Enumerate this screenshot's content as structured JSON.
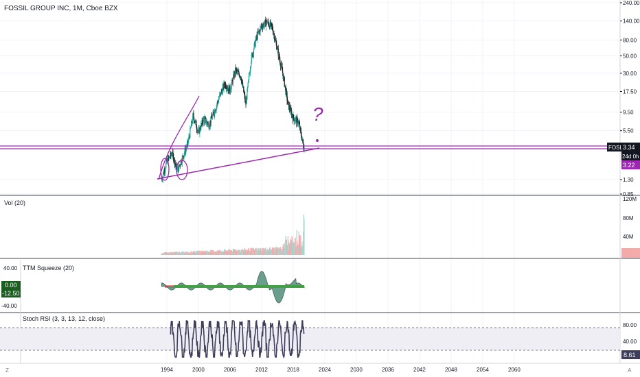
{
  "header": {
    "title": "FOSSIL GROUP INC, 1M, Cboe BZX"
  },
  "colors": {
    "up": "#26a69a",
    "down": "#ef5350",
    "drawing": "#9c27b0",
    "squeeze_green": "#43a047",
    "rsi_line": "#3f3d5c",
    "rsi_band": "#eeeef4"
  },
  "price_axis": {
    "ticks": [
      "240.00",
      "140.00",
      "80.00",
      "50.00",
      "30.00",
      "17.50",
      "9.50",
      "5.50",
      "3.22",
      "1.30",
      "0.85"
    ]
  },
  "price_badges": {
    "symbol": "FOSL",
    "last": "3.34",
    "countdown": "24d 0h",
    "drawn": "3.22"
  },
  "volume": {
    "label": "Vol (20)",
    "ticks": [
      "120M",
      "80M",
      "40M"
    ]
  },
  "squeeze": {
    "label": "TTM Squeeze (20)",
    "ticks": [
      "40.00",
      "0.00",
      "-12.50",
      "-40.00"
    ]
  },
  "stoch": {
    "label": "Stoch RSI (3, 3, 13, 12, close)",
    "ticks": [
      "80.00",
      "40.00"
    ],
    "last": "8.61"
  },
  "time_axis": {
    "ticks": [
      "1994",
      "2000",
      "2006",
      "2012",
      "2018",
      "2024",
      "2030",
      "2036",
      "2042",
      "2048",
      "2054",
      "2060"
    ]
  },
  "corner_left": "Z",
  "corner_right": "A",
  "annotations": {
    "question": "?"
  },
  "chart_data": [
    {
      "type": "line",
      "title": "FOSSIL GROUP INC, 1M, Cboe BZX",
      "x": [
        1993,
        1994,
        1995,
        1996,
        1997,
        1998,
        1999,
        2000,
        2001,
        2002,
        2003,
        2004,
        2005,
        2006,
        2007,
        2008,
        2009,
        2010,
        2011,
        2012,
        2013,
        2014,
        2015,
        2016,
        2017,
        2018,
        2019,
        2020
      ],
      "series": [
        {
          "name": "FOSSIL GROUP INC",
          "values": [
            1.3,
            2.2,
            2.8,
            1.7,
            2.5,
            3.8,
            8.5,
            5.2,
            7.8,
            6.5,
            9.5,
            15,
            22,
            18,
            32,
            28,
            12,
            45,
            85,
            120,
            135,
            115,
            60,
            30,
            12,
            8,
            7,
            3.3
          ]
        }
      ],
      "ylim": [
        0.85,
        240
      ],
      "log_scale": true
    },
    {
      "type": "bar",
      "title": "Vol (20)",
      "ylim": [
        0,
        120
      ],
      "max_visible": 110
    },
    {
      "type": "area",
      "title": "TTM Squeeze (20)",
      "ylim": [
        -40,
        40
      ],
      "last": 0.0
    },
    {
      "type": "line",
      "title": "Stoch RSI (3, 3, 13, 12, close)",
      "ylim": [
        0,
        100
      ],
      "bands": [
        20,
        80
      ],
      "last": 8.61
    }
  ]
}
